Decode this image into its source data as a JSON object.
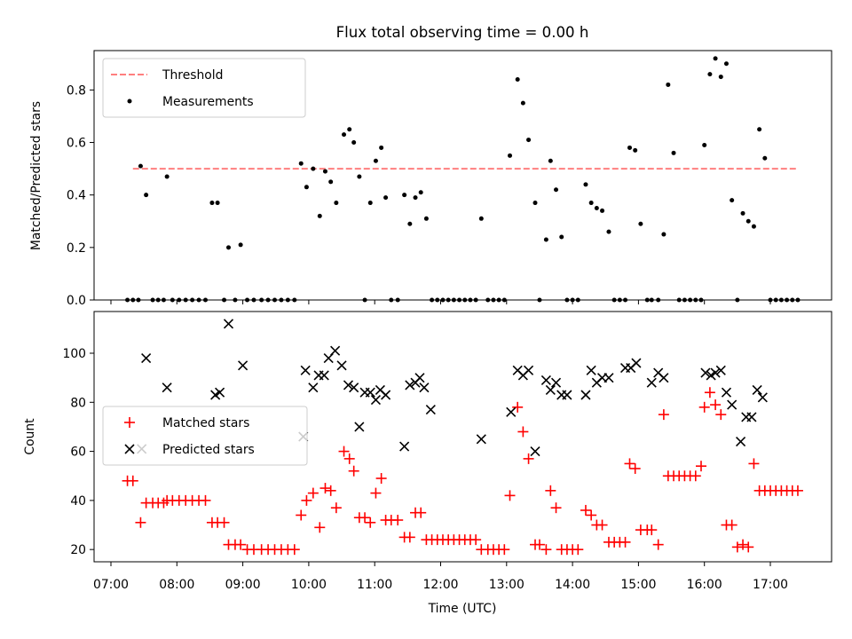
{
  "title": "Flux total observing time = 0.00 h",
  "top": {
    "ylabel": "Matched/Predicted stars",
    "ylim": [
      0,
      0.95
    ],
    "yticks": [
      0.0,
      0.2,
      0.4,
      0.6,
      0.8
    ],
    "ytick_labels": [
      "0.0",
      "0.2",
      "0.4",
      "0.6",
      "0.8"
    ],
    "legend": {
      "threshold": "Threshold",
      "measurements": "Measurements"
    }
  },
  "bottom": {
    "xlabel": "Time (UTC)",
    "ylabel": "Count",
    "ylim": [
      15,
      117
    ],
    "yticks": [
      20,
      40,
      60,
      80,
      100
    ],
    "ytick_labels": [
      "20",
      "40",
      "60",
      "80",
      "100"
    ],
    "legend": {
      "matched": "Matched stars",
      "predicted": "Predicted stars"
    }
  },
  "xticks": [
    "07:00",
    "08:00",
    "09:00",
    "10:00",
    "11:00",
    "12:00",
    "13:00",
    "14:00",
    "15:00",
    "16:00",
    "17:00"
  ],
  "colors": {
    "threshold": "#ff7f7f",
    "matched": "#ff0000",
    "predicted": "#000000",
    "measurement": "#000000"
  },
  "chart_data": [
    {
      "type": "line",
      "name": "Threshold",
      "x": [
        "07:20",
        "17:25"
      ],
      "y": [
        0.5,
        0.5
      ]
    },
    {
      "type": "scatter",
      "name": "Measurements",
      "points": [
        [
          "07:15",
          0
        ],
        [
          "07:20",
          0
        ],
        [
          "07:25",
          0
        ],
        [
          "07:27",
          0.51
        ],
        [
          "07:32",
          0.4
        ],
        [
          "07:38",
          0
        ],
        [
          "07:43",
          0
        ],
        [
          "07:48",
          0
        ],
        [
          "07:51",
          0.47
        ],
        [
          "07:56",
          0
        ],
        [
          "08:02",
          0
        ],
        [
          "08:08",
          0
        ],
        [
          "08:14",
          0
        ],
        [
          "08:20",
          0
        ],
        [
          "08:26",
          0
        ],
        [
          "08:32",
          0.37
        ],
        [
          "08:37",
          0.37
        ],
        [
          "08:43",
          0
        ],
        [
          "08:47",
          0.2
        ],
        [
          "08:53",
          0
        ],
        [
          "08:58",
          0.21
        ],
        [
          "09:04",
          0
        ],
        [
          "09:10",
          0
        ],
        [
          "09:17",
          0
        ],
        [
          "09:23",
          0
        ],
        [
          "09:29",
          0
        ],
        [
          "09:35",
          0
        ],
        [
          "09:41",
          0
        ],
        [
          "09:47",
          0
        ],
        [
          "09:53",
          0.52
        ],
        [
          "09:58",
          0.43
        ],
        [
          "10:04",
          0.5
        ],
        [
          "10:10",
          0.32
        ],
        [
          "10:15",
          0.49
        ],
        [
          "10:20",
          0.45
        ],
        [
          "10:25",
          0.37
        ],
        [
          "10:32",
          0.63
        ],
        [
          "10:37",
          0.65
        ],
        [
          "10:41",
          0.6
        ],
        [
          "10:46",
          0.47
        ],
        [
          "10:51",
          0
        ],
        [
          "10:56",
          0.37
        ],
        [
          "11:01",
          0.53
        ],
        [
          "11:06",
          0.58
        ],
        [
          "11:10",
          0.39
        ],
        [
          "11:15",
          0
        ],
        [
          "11:21",
          0
        ],
        [
          "11:27",
          0.4
        ],
        [
          "11:32",
          0.29
        ],
        [
          "11:37",
          0.39
        ],
        [
          "11:42",
          0.41
        ],
        [
          "11:47",
          0.31
        ],
        [
          "11:52",
          0
        ],
        [
          "11:57",
          0
        ],
        [
          "12:02",
          0
        ],
        [
          "12:07",
          0
        ],
        [
          "12:12",
          0
        ],
        [
          "12:17",
          0
        ],
        [
          "12:22",
          0
        ],
        [
          "12:27",
          0
        ],
        [
          "12:32",
          0
        ],
        [
          "12:37",
          0.31
        ],
        [
          "12:43",
          0
        ],
        [
          "12:48",
          0
        ],
        [
          "12:53",
          0
        ],
        [
          "12:58",
          0
        ],
        [
          "13:03",
          0.55
        ],
        [
          "13:10",
          0.84
        ],
        [
          "13:15",
          0.75
        ],
        [
          "13:20",
          0.61
        ],
        [
          "13:26",
          0.37
        ],
        [
          "13:30",
          0
        ],
        [
          "13:36",
          0.23
        ],
        [
          "13:40",
          0.53
        ],
        [
          "13:45",
          0.42
        ],
        [
          "13:50",
          0.24
        ],
        [
          "13:55",
          0
        ],
        [
          "14:00",
          0
        ],
        [
          "14:05",
          0
        ],
        [
          "14:12",
          0.44
        ],
        [
          "14:17",
          0.37
        ],
        [
          "14:22",
          0.35
        ],
        [
          "14:27",
          0.34
        ],
        [
          "14:33",
          0.26
        ],
        [
          "14:38",
          0
        ],
        [
          "14:43",
          0
        ],
        [
          "14:48",
          0
        ],
        [
          "14:52",
          0.58
        ],
        [
          "14:57",
          0.57
        ],
        [
          "15:02",
          0.29
        ],
        [
          "15:08",
          0
        ],
        [
          "15:12",
          0
        ],
        [
          "15:18",
          0
        ],
        [
          "15:23",
          0.25
        ],
        [
          "15:27",
          0.82
        ],
        [
          "15:32",
          0.56
        ],
        [
          "15:37",
          0
        ],
        [
          "15:42",
          0
        ],
        [
          "15:47",
          0
        ],
        [
          "15:52",
          0
        ],
        [
          "15:57",
          0
        ],
        [
          "16:00",
          0.59
        ],
        [
          "16:05",
          0.86
        ],
        [
          "16:10",
          0.92
        ],
        [
          "16:15",
          0.85
        ],
        [
          "16:20",
          0.9
        ],
        [
          "16:25",
          0.38
        ],
        [
          "16:30",
          0
        ],
        [
          "16:35",
          0.33
        ],
        [
          "16:40",
          0.3
        ],
        [
          "16:45",
          0.28
        ],
        [
          "16:50",
          0.65
        ],
        [
          "16:55",
          0.54
        ],
        [
          "17:00",
          0
        ],
        [
          "17:05",
          0
        ],
        [
          "17:10",
          0
        ],
        [
          "17:15",
          0
        ],
        [
          "17:20",
          0
        ],
        [
          "17:25",
          0
        ]
      ]
    },
    {
      "type": "scatter",
      "name": "Matched stars",
      "points": [
        [
          "07:15",
          48
        ],
        [
          "07:20",
          48
        ],
        [
          "07:27",
          31
        ],
        [
          "07:32",
          39
        ],
        [
          "07:38",
          39
        ],
        [
          "07:43",
          39
        ],
        [
          "07:48",
          39
        ],
        [
          "07:51",
          40
        ],
        [
          "07:56",
          40
        ],
        [
          "08:02",
          40
        ],
        [
          "08:08",
          40
        ],
        [
          "08:14",
          40
        ],
        [
          "08:20",
          40
        ],
        [
          "08:26",
          40
        ],
        [
          "08:32",
          31
        ],
        [
          "08:37",
          31
        ],
        [
          "08:43",
          31
        ],
        [
          "08:47",
          22
        ],
        [
          "08:53",
          22
        ],
        [
          "08:58",
          22
        ],
        [
          "09:04",
          20
        ],
        [
          "09:10",
          20
        ],
        [
          "09:17",
          20
        ],
        [
          "09:23",
          20
        ],
        [
          "09:29",
          20
        ],
        [
          "09:35",
          20
        ],
        [
          "09:41",
          20
        ],
        [
          "09:47",
          20
        ],
        [
          "09:53",
          34
        ],
        [
          "09:58",
          40
        ],
        [
          "10:04",
          43
        ],
        [
          "10:10",
          29
        ],
        [
          "10:15",
          45
        ],
        [
          "10:20",
          44
        ],
        [
          "10:25",
          37
        ],
        [
          "10:32",
          60
        ],
        [
          "10:37",
          57
        ],
        [
          "10:41",
          52
        ],
        [
          "10:46",
          33
        ],
        [
          "10:51",
          33
        ],
        [
          "10:56",
          31
        ],
        [
          "11:01",
          43
        ],
        [
          "11:06",
          49
        ],
        [
          "11:10",
          32
        ],
        [
          "11:15",
          32
        ],
        [
          "11:21",
          32
        ],
        [
          "11:27",
          25
        ],
        [
          "11:32",
          25
        ],
        [
          "11:37",
          35
        ],
        [
          "11:42",
          35
        ],
        [
          "11:47",
          24
        ],
        [
          "11:52",
          24
        ],
        [
          "11:57",
          24
        ],
        [
          "12:02",
          24
        ],
        [
          "12:07",
          24
        ],
        [
          "12:12",
          24
        ],
        [
          "12:17",
          24
        ],
        [
          "12:22",
          24
        ],
        [
          "12:27",
          24
        ],
        [
          "12:32",
          24
        ],
        [
          "12:37",
          20
        ],
        [
          "12:43",
          20
        ],
        [
          "12:48",
          20
        ],
        [
          "12:53",
          20
        ],
        [
          "12:58",
          20
        ],
        [
          "13:03",
          42
        ],
        [
          "13:10",
          78
        ],
        [
          "13:15",
          68
        ],
        [
          "13:20",
          57
        ],
        [
          "13:26",
          22
        ],
        [
          "13:30",
          22
        ],
        [
          "13:36",
          20
        ],
        [
          "13:40",
          44
        ],
        [
          "13:45",
          37
        ],
        [
          "13:50",
          20
        ],
        [
          "13:55",
          20
        ],
        [
          "14:00",
          20
        ],
        [
          "14:05",
          20
        ],
        [
          "14:12",
          36
        ],
        [
          "14:17",
          34
        ],
        [
          "14:22",
          30
        ],
        [
          "14:27",
          30
        ],
        [
          "14:33",
          23
        ],
        [
          "14:38",
          23
        ],
        [
          "14:43",
          23
        ],
        [
          "14:48",
          23
        ],
        [
          "14:52",
          55
        ],
        [
          "14:57",
          53
        ],
        [
          "15:02",
          28
        ],
        [
          "15:08",
          28
        ],
        [
          "15:12",
          28
        ],
        [
          "15:18",
          22
        ],
        [
          "15:23",
          75
        ],
        [
          "15:27",
          50
        ],
        [
          "15:32",
          50
        ],
        [
          "15:37",
          50
        ],
        [
          "15:42",
          50
        ],
        [
          "15:47",
          50
        ],
        [
          "15:52",
          50
        ],
        [
          "15:57",
          54
        ],
        [
          "16:00",
          78
        ],
        [
          "16:05",
          84
        ],
        [
          "16:10",
          79
        ],
        [
          "16:15",
          75
        ],
        [
          "16:20",
          30
        ],
        [
          "16:25",
          30
        ],
        [
          "16:30",
          21
        ],
        [
          "16:35",
          22
        ],
        [
          "16:40",
          21
        ],
        [
          "16:45",
          55
        ],
        [
          "16:50",
          44
        ],
        [
          "16:55",
          44
        ],
        [
          "17:00",
          44
        ],
        [
          "17:05",
          44
        ],
        [
          "17:10",
          44
        ],
        [
          "17:15",
          44
        ],
        [
          "17:20",
          44
        ],
        [
          "17:25",
          44
        ]
      ]
    },
    {
      "type": "scatter",
      "name": "Predicted stars",
      "points": [
        [
          "07:28",
          61
        ],
        [
          "07:32",
          98
        ],
        [
          "07:51",
          86
        ],
        [
          "08:35",
          83
        ],
        [
          "08:39",
          84
        ],
        [
          "08:47",
          112
        ],
        [
          "09:00",
          95
        ],
        [
          "09:55",
          66
        ],
        [
          "09:57",
          93
        ],
        [
          "10:04",
          86
        ],
        [
          "10:09",
          91
        ],
        [
          "10:14",
          91
        ],
        [
          "10:18",
          98
        ],
        [
          "10:24",
          101
        ],
        [
          "10:30",
          95
        ],
        [
          "10:36",
          87
        ],
        [
          "10:41",
          86
        ],
        [
          "10:46",
          70
        ],
        [
          "10:51",
          84
        ],
        [
          "10:56",
          84
        ],
        [
          "11:01",
          81
        ],
        [
          "11:05",
          85
        ],
        [
          "11:10",
          83
        ],
        [
          "11:27",
          62
        ],
        [
          "11:32",
          87
        ],
        [
          "11:37",
          88
        ],
        [
          "11:41",
          90
        ],
        [
          "11:45",
          86
        ],
        [
          "11:51",
          77
        ],
        [
          "12:37",
          65
        ],
        [
          "13:04",
          76
        ],
        [
          "13:10",
          93
        ],
        [
          "13:15",
          91
        ],
        [
          "13:20",
          93
        ],
        [
          "13:26",
          60
        ],
        [
          "13:36",
          89
        ],
        [
          "13:40",
          85
        ],
        [
          "13:45",
          88
        ],
        [
          "13:50",
          83
        ],
        [
          "13:55",
          83
        ],
        [
          "14:12",
          83
        ],
        [
          "14:17",
          93
        ],
        [
          "14:22",
          88
        ],
        [
          "14:27",
          90
        ],
        [
          "14:33",
          90
        ],
        [
          "14:48",
          94
        ],
        [
          "14:53",
          94
        ],
        [
          "14:58",
          96
        ],
        [
          "15:12",
          88
        ],
        [
          "15:18",
          92
        ],
        [
          "15:23",
          90
        ],
        [
          "16:01",
          92
        ],
        [
          "16:06",
          91
        ],
        [
          "16:10",
          92
        ],
        [
          "16:15",
          93
        ],
        [
          "16:20",
          84
        ],
        [
          "16:25",
          79
        ],
        [
          "16:33",
          64
        ],
        [
          "16:38",
          74
        ],
        [
          "16:43",
          74
        ],
        [
          "16:48",
          85
        ],
        [
          "16:53",
          82
        ]
      ]
    }
  ]
}
